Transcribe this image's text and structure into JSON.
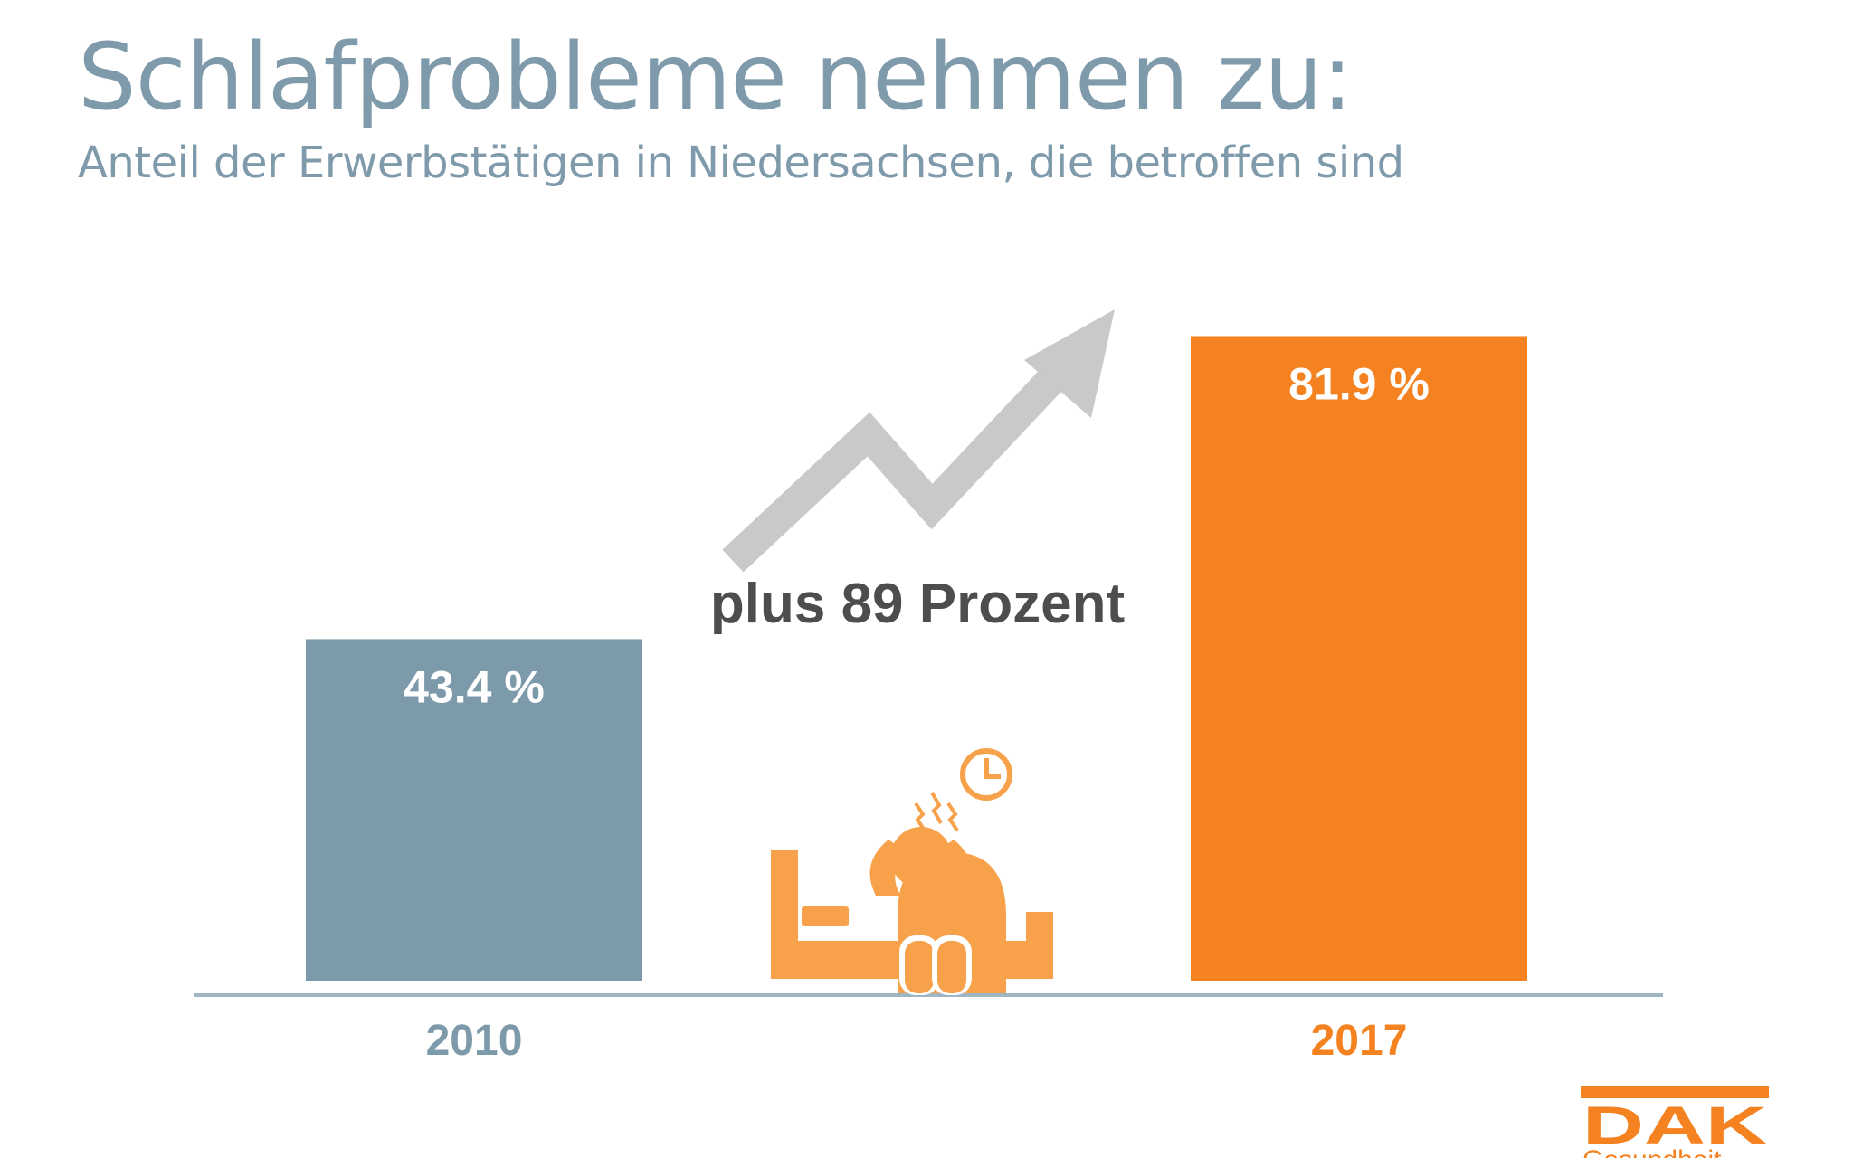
{
  "header": {
    "title": "Schlafprobleme nehmen zu:",
    "subtitle": "Anteil der Erwerbstätigen in Niedersachsen, die betroffen sind"
  },
  "chart_data": {
    "type": "bar",
    "title": "Schlafprobleme nehmen zu:",
    "subtitle": "Anteil der Erwerbstätigen in Niedersachsen, die betroffen sind",
    "categories": [
      "2010",
      "2017"
    ],
    "values": [
      43.4,
      81.9
    ],
    "data_labels": [
      "43.4 %",
      "81.9 %"
    ],
    "colors": [
      "#7d9aab",
      "#f58220"
    ],
    "tick_label_colors": [
      "#7d9aab",
      "#f58220"
    ],
    "annotation": "plus 89 Prozent",
    "xlabel": "",
    "ylabel": "",
    "ylim": [
      0,
      100
    ],
    "grid": false
  },
  "icons": {
    "trend": "trend-arrow-icon",
    "illustration": "sleepless-person-icon",
    "clock": "clock-icon"
  },
  "logo": {
    "name": "DAK",
    "subtext": "Gesundheit",
    "color": "#f58220"
  },
  "colors": {
    "title": "#7e9aab",
    "baseline": "#9fb6c3",
    "arrow": "#c8c9cb",
    "illustration": "#f7a24a"
  }
}
